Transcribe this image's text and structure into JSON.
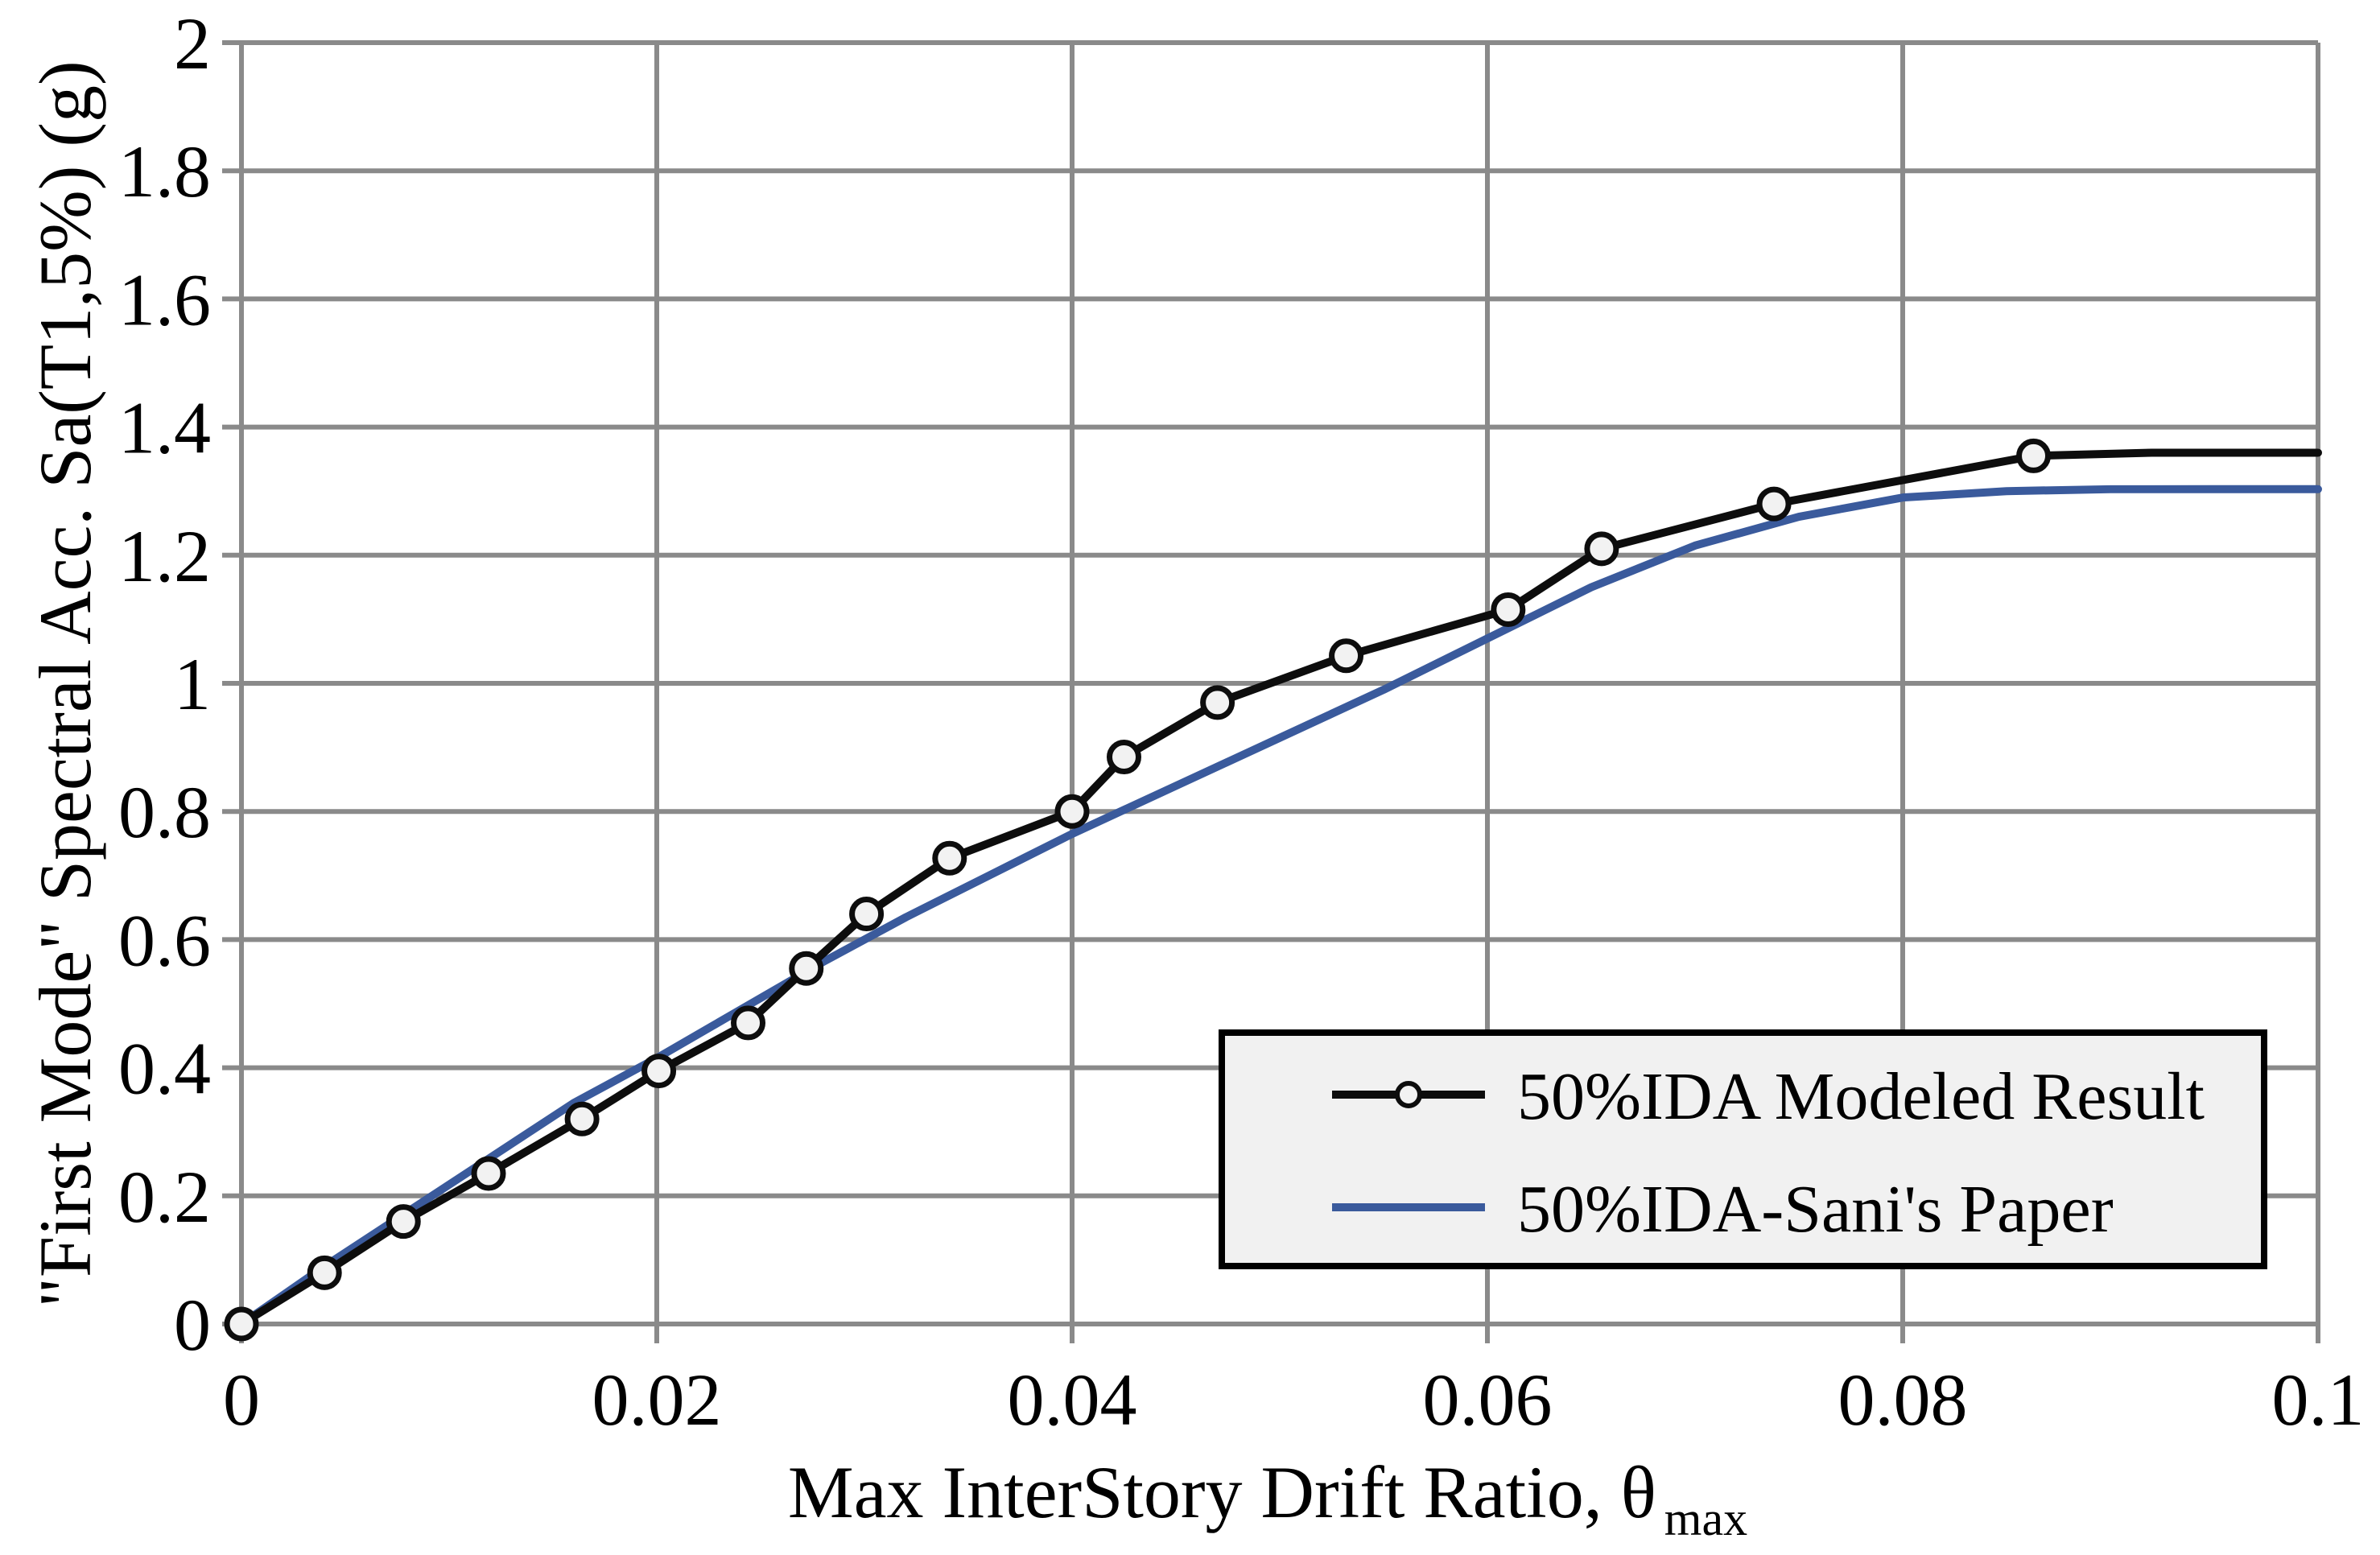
{
  "chart_data": {
    "type": "line",
    "title": "",
    "xlabel": "Max InterStory Drift Ratio, θ",
    "xlabel_sub": "max",
    "ylabel": "\"First Mode\" Spectral Acc. Sa(T1,5%) (g)",
    "xlim": [
      0,
      0.1
    ],
    "ylim": [
      0,
      2
    ],
    "grid": true,
    "legend_position": "inside-bottom-right",
    "xticks": {
      "values": [
        0,
        0.02,
        0.04,
        0.06,
        0.08,
        0.1
      ],
      "labels": [
        "0",
        "0.02",
        "0.04",
        "0.06",
        "0.08",
        "0.1"
      ]
    },
    "yticks": {
      "values": [
        0,
        0.2,
        0.4,
        0.6,
        0.8,
        1,
        1.2,
        1.4,
        1.6,
        1.8,
        2
      ],
      "labels": [
        "0",
        "0.2",
        "0.4",
        "0.6",
        "0.8",
        "1",
        "1.2",
        "1.4",
        "1.6",
        "1.8",
        "2"
      ]
    },
    "series": [
      {
        "name": "50%IDA Modeled Result",
        "color": "#0d0d0d",
        "marker": "circle",
        "line": [
          [
            0,
            0
          ],
          [
            0.004,
            0.08
          ],
          [
            0.0078,
            0.16
          ],
          [
            0.0119,
            0.235
          ],
          [
            0.0164,
            0.32
          ],
          [
            0.0201,
            0.395
          ],
          [
            0.0244,
            0.47
          ],
          [
            0.0272,
            0.555
          ],
          [
            0.0301,
            0.64
          ],
          [
            0.0341,
            0.727
          ],
          [
            0.04,
            0.8
          ],
          [
            0.0425,
            0.885
          ],
          [
            0.047,
            0.97
          ],
          [
            0.0532,
            1.043
          ],
          [
            0.061,
            1.115
          ],
          [
            0.0655,
            1.21
          ],
          [
            0.0738,
            1.28
          ],
          [
            0.0863,
            1.355
          ],
          [
            0.092,
            1.36
          ],
          [
            0.1,
            1.36
          ]
        ],
        "markers": [
          [
            0,
            0
          ],
          [
            0.004,
            0.08
          ],
          [
            0.0078,
            0.16
          ],
          [
            0.0119,
            0.235
          ],
          [
            0.0164,
            0.32
          ],
          [
            0.0201,
            0.395
          ],
          [
            0.0244,
            0.47
          ],
          [
            0.0272,
            0.555
          ],
          [
            0.0301,
            0.64
          ],
          [
            0.0341,
            0.727
          ],
          [
            0.04,
            0.8
          ],
          [
            0.0425,
            0.885
          ],
          [
            0.047,
            0.97
          ],
          [
            0.0532,
            1.043
          ],
          [
            0.061,
            1.115
          ],
          [
            0.0655,
            1.21
          ],
          [
            0.0738,
            1.28
          ],
          [
            0.0863,
            1.355
          ]
        ]
      },
      {
        "name": "50%IDA-Sani's Paper",
        "color": "#3a5a9c",
        "marker": "none",
        "line": [
          [
            0,
            0
          ],
          [
            0.004,
            0.09
          ],
          [
            0.008,
            0.175
          ],
          [
            0.012,
            0.26
          ],
          [
            0.016,
            0.345
          ],
          [
            0.02,
            0.415
          ],
          [
            0.024,
            0.49
          ],
          [
            0.028,
            0.565
          ],
          [
            0.032,
            0.635
          ],
          [
            0.036,
            0.7
          ],
          [
            0.04,
            0.765
          ],
          [
            0.045,
            0.84
          ],
          [
            0.05,
            0.915
          ],
          [
            0.055,
            0.99
          ],
          [
            0.06,
            1.07
          ],
          [
            0.065,
            1.15
          ],
          [
            0.07,
            1.215
          ],
          [
            0.075,
            1.26
          ],
          [
            0.08,
            1.29
          ],
          [
            0.085,
            1.3
          ],
          [
            0.09,
            1.303
          ],
          [
            0.095,
            1.303
          ],
          [
            0.1,
            1.303
          ]
        ],
        "markers": []
      }
    ]
  },
  "colors": {
    "gridline": "#8a8a8a",
    "series_black": "#0d0d0d",
    "series_blue": "#3a5a9c",
    "marker_fill": "#f2f2f2",
    "legend_bg": "#f1f1f1",
    "legend_border": "#000000",
    "background": "#ffffff"
  }
}
